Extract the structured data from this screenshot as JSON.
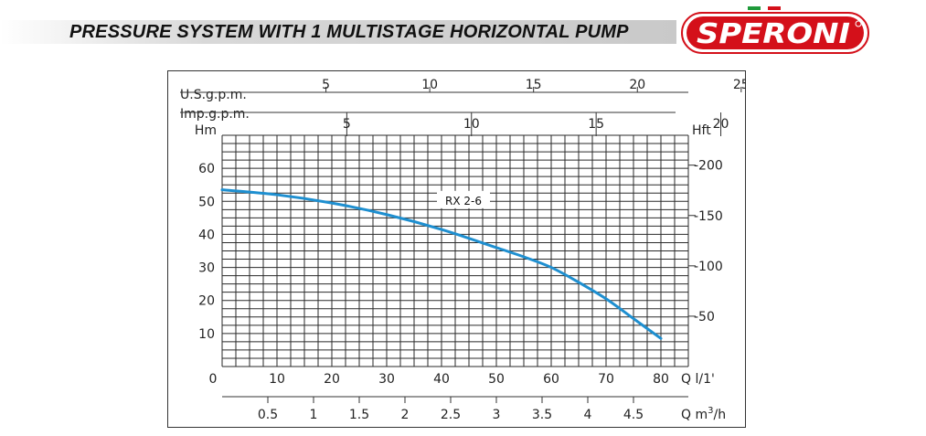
{
  "header": {
    "title": "PRESSURE SYSTEM WITH 1 MULTISTAGE HORIZONTAL PUMP",
    "logo_text": "SPERONI",
    "brand_red": "#d4101a",
    "flag_green": "#1f9a3a"
  },
  "chart_data": {
    "type": "line",
    "axis_labels": {
      "usgpm": "U.S.g.p.m.",
      "impgpm": "Imp.g.p.m.",
      "hm": "Hm",
      "hft": "Hft",
      "q_lmin": "Q  l/1'",
      "q_m3h_prefix": "Q  m",
      "q_m3h_sup": "3",
      "q_m3h_suffix": "/h"
    },
    "x_lmin": {
      "range": [
        0,
        85
      ],
      "ticks": [
        0,
        10,
        20,
        30,
        40,
        50,
        60,
        70,
        80
      ]
    },
    "y_m": {
      "range": [
        0,
        70
      ],
      "ticks": [
        10,
        20,
        30,
        40,
        50,
        60
      ]
    },
    "y_ft_ticks": [
      "50",
      "100",
      "150",
      "200"
    ],
    "usgpm_ticks": [
      "5",
      "10",
      "15",
      "20",
      "25"
    ],
    "impgpm_ticks": [
      "5",
      "10",
      "15",
      "20"
    ],
    "m3h_ticks": [
      "0.5",
      "1",
      "1.5",
      "2",
      "2.5",
      "3",
      "3.5",
      "4",
      "4.5"
    ],
    "grid": true,
    "curve_color": "#1e8fd0",
    "series": [
      {
        "name": "RX 2-6",
        "x": [
          0,
          10,
          20,
          30,
          40,
          50,
          55,
          60,
          65,
          70,
          75,
          80
        ],
        "y": [
          53.5,
          52,
          49.5,
          46,
          41.5,
          36,
          33.2,
          30,
          25.5,
          20.5,
          14.5,
          8.5
        ]
      }
    ]
  }
}
